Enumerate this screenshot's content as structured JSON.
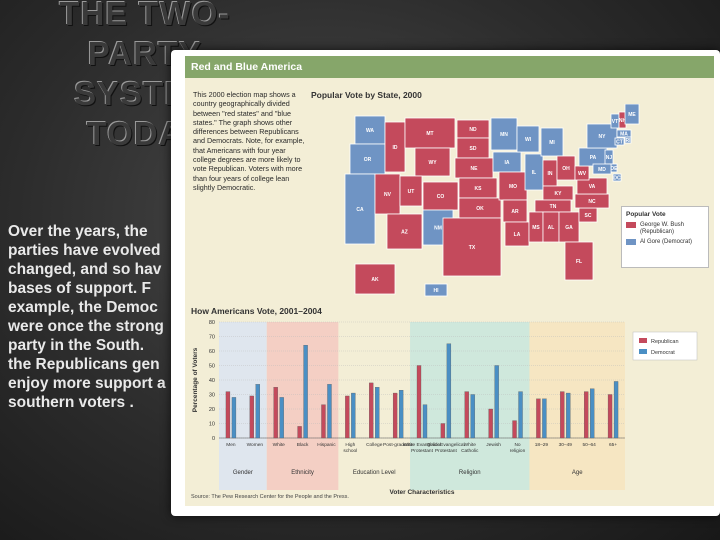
{
  "slide": {
    "title_lines": [
      "THE TWO-",
      "PARTY",
      "SYSTEM",
      "TODAY"
    ],
    "body_lines": [
      "Over  the years, the",
      "parties have evolved",
      "changed, and so hav",
      "bases of support.   F",
      "example, the Democ",
      "were once the strong",
      "party in the  South.",
      "the  Republicans gen",
      "enjoy more support a",
      "southern voters    ."
    ]
  },
  "figure": {
    "header": "Red and Blue America",
    "intro": "This 2000 election map shows a country geographically divided between \"red states\" and \"blue states.\" The graph shows other differences between Republicans and Democrats. Note, for example, that Americans with four year college degrees are more likely to vote Republican. Voters with more than four years of college lean slightly Democratic.",
    "map_title": "Popular Vote by State, 2000",
    "legend": {
      "title": "Popular Vote",
      "items": [
        {
          "label": "George W. Bush (Republican)",
          "color": "#c44a5c"
        },
        {
          "label": "Al Gore (Democrat)",
          "color": "#6f94c4"
        }
      ]
    },
    "states": [
      {
        "code": "WA",
        "party": "D"
      },
      {
        "code": "OR",
        "party": "D"
      },
      {
        "code": "CA",
        "party": "D"
      },
      {
        "code": "NV",
        "party": "R"
      },
      {
        "code": "ID",
        "party": "R"
      },
      {
        "code": "MT",
        "party": "R"
      },
      {
        "code": "WY",
        "party": "R"
      },
      {
        "code": "UT",
        "party": "R"
      },
      {
        "code": "AZ",
        "party": "R"
      },
      {
        "code": "CO",
        "party": "R"
      },
      {
        "code": "NM",
        "party": "D"
      },
      {
        "code": "ND",
        "party": "R"
      },
      {
        "code": "SD",
        "party": "R"
      },
      {
        "code": "NE",
        "party": "R"
      },
      {
        "code": "KS",
        "party": "R"
      },
      {
        "code": "OK",
        "party": "R"
      },
      {
        "code": "TX",
        "party": "R"
      },
      {
        "code": "MN",
        "party": "D"
      },
      {
        "code": "IA",
        "party": "D"
      },
      {
        "code": "MO",
        "party": "R"
      },
      {
        "code": "AR",
        "party": "R"
      },
      {
        "code": "LA",
        "party": "R"
      },
      {
        "code": "WI",
        "party": "D"
      },
      {
        "code": "IL",
        "party": "D"
      },
      {
        "code": "MI",
        "party": "D"
      },
      {
        "code": "IN",
        "party": "R"
      },
      {
        "code": "KY",
        "party": "R"
      },
      {
        "code": "TN",
        "party": "R"
      },
      {
        "code": "MS",
        "party": "R"
      },
      {
        "code": "AL",
        "party": "R"
      },
      {
        "code": "OH",
        "party": "R"
      },
      {
        "code": "GA",
        "party": "R"
      },
      {
        "code": "FL",
        "party": "R"
      },
      {
        "code": "SC",
        "party": "R"
      },
      {
        "code": "NC",
        "party": "R"
      },
      {
        "code": "VA",
        "party": "R"
      },
      {
        "code": "WV",
        "party": "R"
      },
      {
        "code": "PA",
        "party": "D"
      },
      {
        "code": "NY",
        "party": "D"
      },
      {
        "code": "VT",
        "party": "D"
      },
      {
        "code": "NH",
        "party": "R"
      },
      {
        "code": "ME",
        "party": "D"
      },
      {
        "code": "MA",
        "party": "D"
      },
      {
        "code": "CT",
        "party": "D"
      },
      {
        "code": "NJ",
        "party": "D"
      },
      {
        "code": "DE",
        "party": "D"
      },
      {
        "code": "MD",
        "party": "D"
      },
      {
        "code": "DC",
        "party": "D"
      },
      {
        "code": "RI",
        "party": "D"
      },
      {
        "code": "AK",
        "party": "R"
      },
      {
        "code": "HI",
        "party": "D"
      }
    ],
    "chart_title": "How Americans Vote, 2001–2004",
    "source": "Source: The Pew Research Center for the People and the Press.",
    "colors": {
      "republican": "#c44a5c",
      "democrat": "#4a8fc4"
    }
  },
  "chart_data": {
    "type": "bar",
    "ylabel": "Percentage of Voters",
    "xlabel": "Voter Characteristics",
    "ylim": [
      0,
      80
    ],
    "yticks": [
      0,
      10,
      20,
      30,
      40,
      50,
      60,
      70,
      80
    ],
    "categories": [
      "Men",
      "Women",
      "White",
      "Black",
      "Hispanic",
      "High school",
      "College",
      "Post-graduate",
      "White Evangelical Protestant",
      "Black Evangelical Protestant",
      "White Catholic",
      "Jewish",
      "No religion",
      "18–29",
      "30–49",
      "50–64",
      "65+"
    ],
    "groups": [
      {
        "name": "Gender",
        "count": 2,
        "color": "#dfe6ee"
      },
      {
        "name": "Ethnicity",
        "count": 3,
        "color": "#f4cfc4"
      },
      {
        "name": "Education Level",
        "count": 3,
        "color": "#f3eed6"
      },
      {
        "name": "Religion",
        "count": 5,
        "color": "#cfe8dc"
      },
      {
        "name": "Age",
        "count": 4,
        "color": "#f6e6c2"
      }
    ],
    "series": [
      {
        "name": "Republican",
        "values": [
          32,
          29,
          35,
          8,
          23,
          29,
          38,
          31,
          50,
          10,
          32,
          20,
          12,
          27,
          32,
          32,
          30
        ]
      },
      {
        "name": "Democrat",
        "values": [
          28,
          37,
          28,
          64,
          37,
          31,
          35,
          33,
          23,
          65,
          30,
          50,
          32,
          27,
          31,
          34,
          39
        ]
      }
    ],
    "legend": [
      "Republican",
      "Democrat"
    ]
  }
}
